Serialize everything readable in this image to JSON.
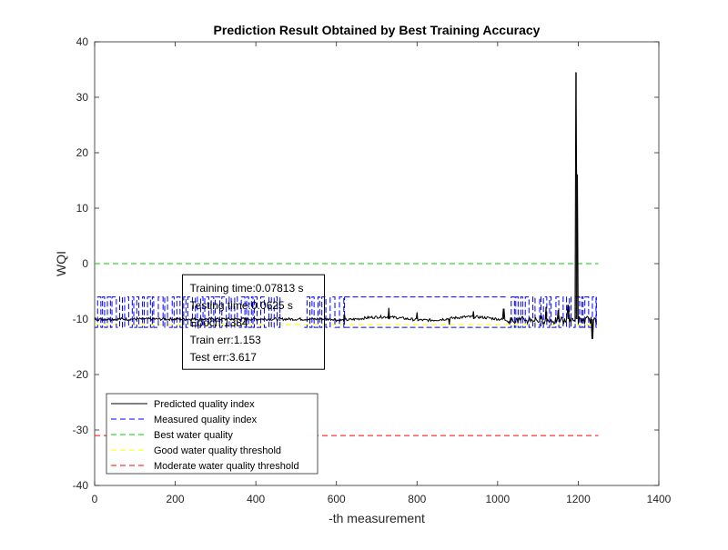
{
  "chart_data": {
    "type": "line",
    "title": "Prediction Result Obtained by Best Training Accuracy",
    "xlabel": "-th measurement",
    "ylabel": "WQI",
    "xlim": [
      0,
      1400
    ],
    "ylim": [
      -40,
      40
    ],
    "xticks": [
      0,
      200,
      400,
      600,
      800,
      1000,
      1200,
      1400
    ],
    "yticks": [
      -40,
      -30,
      -20,
      -10,
      0,
      10,
      20,
      30,
      40
    ],
    "grid": false,
    "legend_position": "bottom-left",
    "series": [
      {
        "name": "Predicted quality index",
        "color": "#000000",
        "dash": "solid",
        "baseline": -10,
        "spikes": [
          {
            "x": 620,
            "y": -9.2
          },
          {
            "x": 730,
            "y": -8.0
          },
          {
            "x": 800,
            "y": -8.8
          },
          {
            "x": 880,
            "y": -11.0
          },
          {
            "x": 940,
            "y": -8.6
          },
          {
            "x": 1015,
            "y": -8.2
          },
          {
            "x": 1120,
            "y": -7.8
          },
          {
            "x": 1150,
            "y": -8.4
          },
          {
            "x": 1175,
            "y": -7.5
          },
          {
            "x": 1195,
            "y": 34.5
          },
          {
            "x": 1197,
            "y": 16.0
          },
          {
            "x": 1235,
            "y": -13.5
          }
        ]
      },
      {
        "name": "Measured quality index",
        "color": "#0000ff",
        "dash": "dashed",
        "levels": [
          -6,
          -11.5
        ],
        "active_ranges": [
          [
            0,
            460
          ],
          [
            520,
            620
          ],
          [
            1025,
            1245
          ]
        ]
      },
      {
        "name": "Best water quality",
        "color": "#00cc00",
        "dash": "dashed",
        "y": 0,
        "x_range": [
          0,
          1250
        ]
      },
      {
        "name": "Good water quality threshold",
        "color": "#ffff00",
        "dash": "dashed",
        "y": -11,
        "x_range": [
          0,
          1250
        ]
      },
      {
        "name": "Moderate water quality threshold",
        "color": "#ff0000",
        "dash": "dashed",
        "y": -31,
        "x_range": [
          0,
          1250
        ]
      }
    ],
    "annotation": {
      "lines": [
        "Training time:0.07813 s",
        "Testing time:0.0625 s",
        "Epoch:1384",
        "Train err:1.153",
        "Test err:3.617"
      ],
      "x": 218,
      "y": -2
    }
  }
}
